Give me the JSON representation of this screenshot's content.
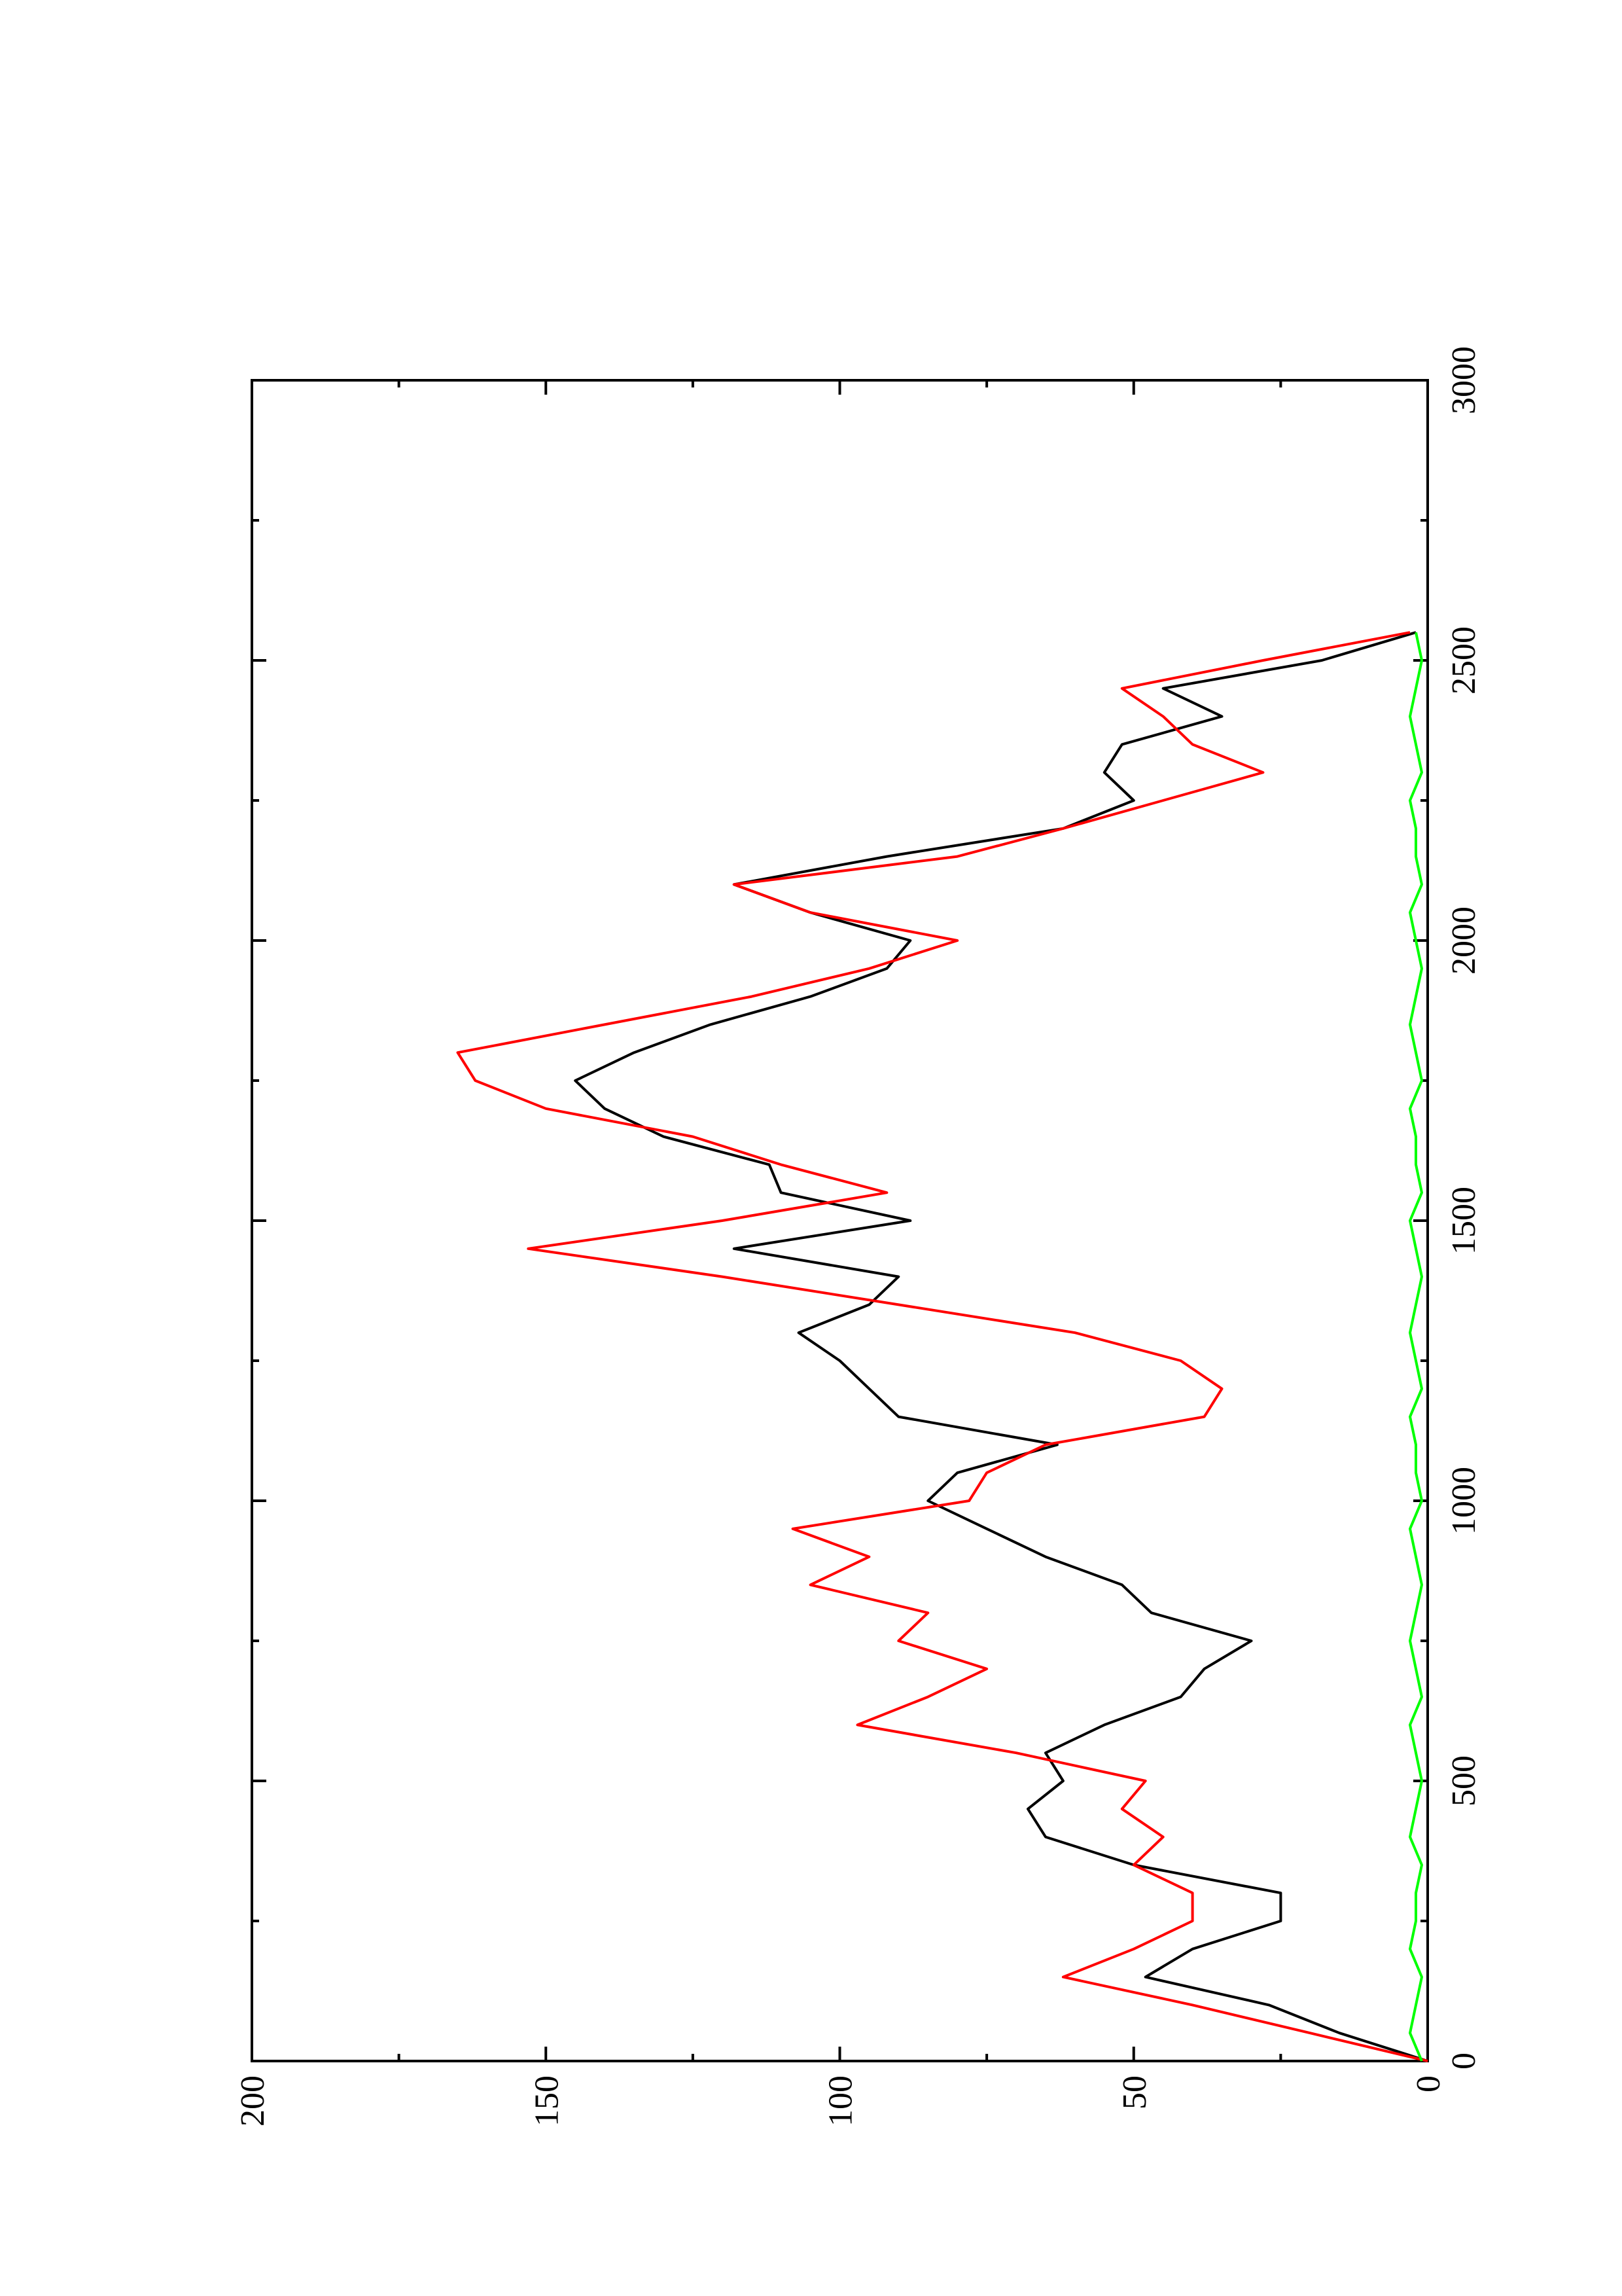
{
  "chart_data": {
    "type": "line",
    "x": [
      0,
      50,
      100,
      150,
      200,
      250,
      300,
      350,
      400,
      450,
      500,
      550,
      600,
      650,
      700,
      750,
      800,
      850,
      900,
      950,
      1000,
      1050,
      1100,
      1150,
      1200,
      1250,
      1300,
      1350,
      1400,
      1450,
      1500,
      1550,
      1600,
      1650,
      1700,
      1750,
      1800,
      1850,
      1900,
      1950,
      2000,
      2050,
      2100,
      2150,
      2200,
      2250,
      2300,
      2350,
      2400,
      2450,
      2500,
      2550
    ],
    "series": [
      {
        "color": "#000000",
        "values": [
          0,
          15,
          27,
          48,
          40,
          25,
          25,
          50,
          65,
          68,
          62,
          65,
          55,
          42,
          38,
          30,
          47,
          52,
          65,
          75,
          85,
          80,
          63,
          90,
          95,
          100,
          107,
          95,
          90,
          118,
          88,
          110,
          112,
          130,
          140,
          145,
          135,
          122,
          105,
          92,
          88,
          105,
          118,
          92,
          62,
          50,
          55,
          52,
          35,
          45,
          18,
          2
        ]
      },
      {
        "color": "#ff0000",
        "values": [
          0,
          20,
          40,
          62,
          50,
          40,
          40,
          50,
          45,
          52,
          48,
          70,
          97,
          85,
          75,
          90,
          85,
          105,
          95,
          108,
          78,
          75,
          65,
          38,
          35,
          42,
          60,
          90,
          120,
          153,
          120,
          92,
          110,
          125,
          150,
          162,
          165,
          140,
          115,
          95,
          80,
          105,
          118,
          80,
          62,
          45,
          28,
          40,
          45,
          52,
          28,
          3
        ]
      },
      {
        "color": "#00ff00",
        "values": [
          1,
          3,
          2,
          1,
          3,
          2,
          2,
          1,
          3,
          2,
          1,
          2,
          3,
          1,
          2,
          3,
          2,
          1,
          2,
          3,
          1,
          2,
          2,
          3,
          1,
          2,
          3,
          2,
          1,
          2,
          3,
          1,
          2,
          2,
          3,
          1,
          2,
          3,
          2,
          1,
          2,
          3,
          1,
          2,
          2,
          3,
          1,
          2,
          3,
          2,
          1,
          2
        ]
      }
    ],
    "xlim": [
      0,
      3000
    ],
    "xticks": [
      0,
      500,
      1000,
      1500,
      2000,
      2500,
      3000
    ],
    "x_minor_ticks": [
      250,
      750,
      1250,
      1750,
      2250,
      2750
    ],
    "ylim": [
      0,
      200
    ],
    "yticks": [
      0,
      50,
      100,
      150,
      200
    ],
    "y_minor_ticks": [
      25,
      75,
      125,
      175
    ],
    "rotation": -90
  }
}
